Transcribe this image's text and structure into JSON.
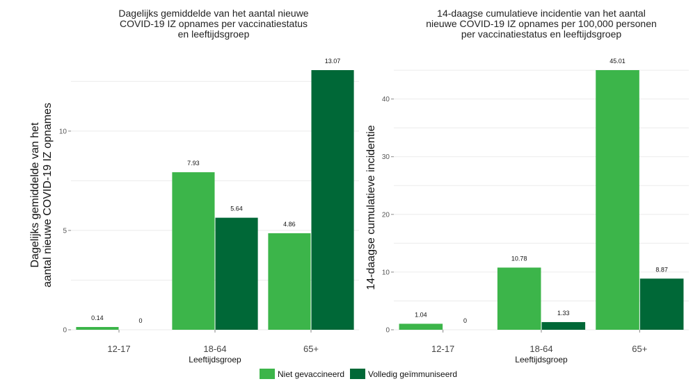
{
  "legend": {
    "items": [
      {
        "label": "Niet gevaccineerd",
        "color": "#3cb54a"
      },
      {
        "label": "Volledig geïmmuniseerd",
        "color": "#006837"
      }
    ]
  },
  "chart_data": [
    {
      "type": "bar",
      "title_lines": [
        "Dagelijks gemiddelde van het aantal nieuwe",
        "COVID-19 IZ opnames per vaccinatiestatus",
        "en leeftijdsgroep"
      ],
      "ylabel_lines": [
        "Dagelijks gemiddelde van het",
        "aantal nieuwe COVID-19 IZ opnames"
      ],
      "xlabel": "Leeftijdsgroep",
      "categories": [
        "12-17",
        "18-64",
        "65+"
      ],
      "series": [
        {
          "name": "Niet gevaccineerd",
          "values": [
            0.14,
            7.93,
            4.86
          ],
          "labels": [
            "0.14",
            "7.93",
            "4.86"
          ]
        },
        {
          "name": "Volledig geïmmuniseerd",
          "values": [
            0,
            5.64,
            13.07
          ],
          "labels": [
            "0",
            "5.64",
            "13.07"
          ]
        }
      ],
      "yticks": [
        0,
        5,
        10
      ],
      "ylim": [
        0,
        13.07
      ],
      "grid": true
    },
    {
      "type": "bar",
      "title_lines": [
        "14-daagse cumulatieve incidentie van het aantal",
        "nieuwe COVID-19 IZ opnames per 100,000 personen",
        "per vaccinatiestatus en leeftijdsgroep"
      ],
      "ylabel_lines": [
        "14-daagse cumulatieve incidentie"
      ],
      "xlabel": "Leeftijdsgroep",
      "categories": [
        "12-17",
        "18-64",
        "65+"
      ],
      "series": [
        {
          "name": "Niet gevaccineerd",
          "values": [
            1.04,
            10.78,
            45.01
          ],
          "labels": [
            "1.04",
            "10.78",
            "45.01"
          ]
        },
        {
          "name": "Volledig geïmmuniseerd",
          "values": [
            0,
            1.33,
            8.87
          ],
          "labels": [
            "0",
            "1.33",
            "8.87"
          ]
        }
      ],
      "yticks": [
        0,
        10,
        20,
        30,
        40
      ],
      "ylim": [
        0,
        45.01
      ],
      "grid": true
    }
  ]
}
